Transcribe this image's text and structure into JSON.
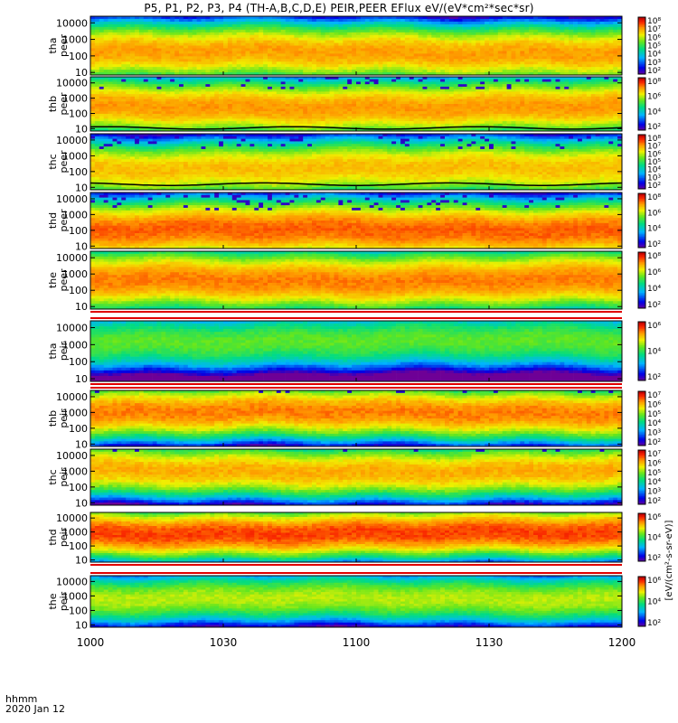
{
  "title": "P5, P1, P2, P3, P4 (TH-A,B,C,D,E) PEIR,PEER EFlux eV/(eV*cm²*sec*sr)",
  "footer": {
    "time_format": "hhmm",
    "date": "2020 Jan 12"
  },
  "colorbar_unit": "[eV/(cm²-s-sr-eV)]",
  "chart_data": {
    "type": "heatmap",
    "title": "P5, P1, P2, P3, P4 (TH-A,B,C,D,E) PEIR,PEER EFlux eV/(eV*cm²*sec*sr)",
    "x_tick_labels": [
      "1000",
      "1030",
      "1100",
      "1130",
      "1200"
    ],
    "x_ticks_minutes": [
      0,
      30,
      60,
      90,
      120
    ],
    "xlabel": "hhmm",
    "y_scale": "log",
    "y_tick_labels": [
      "10",
      "100",
      "1000",
      "10000"
    ],
    "y_range_eV": [
      7,
      25000
    ],
    "panels": [
      {
        "probe": "tha",
        "species": "peer",
        "cbar_ticks": [
          "10⁸",
          "10⁷",
          "10⁶",
          "10⁵",
          "10⁴",
          "10³",
          "10²"
        ],
        "cmin": 2,
        "cmax": 8.2,
        "line": false,
        "peak_logE": 2.2,
        "level": 7.0,
        "bgnoise": false
      },
      {
        "probe": "thb",
        "species": "peer",
        "cbar_ticks": [
          "10⁸",
          "10⁶",
          "10⁴",
          "10²"
        ],
        "cmin": 1.5,
        "cmax": 8.5,
        "line": true,
        "line_logE": 1.05,
        "peak_logE": 2.4,
        "level": 7.2,
        "bgnoise": true
      },
      {
        "probe": "thc",
        "species": "peer",
        "cbar_ticks": [
          "10⁸",
          "10⁷",
          "10⁶",
          "10⁵",
          "10⁴",
          "10³",
          "10²"
        ],
        "cmin": 2,
        "cmax": 8.5,
        "line": true,
        "line_logE": 1.2,
        "peak_logE": 2.2,
        "level": 7.0,
        "bgnoise": true
      },
      {
        "probe": "thd",
        "species": "peer",
        "cbar_ticks": [
          "10⁸",
          "10⁶",
          "10⁴",
          "10²"
        ],
        "cmin": 1.5,
        "cmax": 8.5,
        "line": false,
        "peak_logE": 2.0,
        "level": 7.6,
        "bgnoise": true
      },
      {
        "probe": "the",
        "species": "peer",
        "cbar_ticks": [
          "10⁸",
          "10⁶",
          "10⁴",
          "10²"
        ],
        "cmin": 1.5,
        "cmax": 8.5,
        "line": false,
        "peak_logE": 2.6,
        "level": 7.4,
        "bgnoise": false
      },
      {
        "probe": "tha",
        "species": "peir",
        "cbar_ticks": [
          "10⁶",
          "10⁴",
          "10²"
        ],
        "cmin": 1,
        "cmax": 7,
        "line": false,
        "peak_logE": 3.2,
        "level": 4.4,
        "bgnoise": false
      },
      {
        "probe": "thb",
        "species": "peir",
        "cbar_ticks": [
          "10⁷",
          "10⁶",
          "10⁵",
          "10⁴",
          "10³",
          "10²"
        ],
        "cmin": 1.5,
        "cmax": 7.2,
        "line": false,
        "peak_logE": 3.0,
        "level": 6.3,
        "bgnoise": true
      },
      {
        "probe": "thc",
        "species": "peir",
        "cbar_ticks": [
          "10⁷",
          "10⁶",
          "10⁵",
          "10⁴",
          "10³",
          "10²"
        ],
        "cmin": 1.5,
        "cmax": 7.2,
        "line": false,
        "peak_logE": 3.0,
        "level": 6.0,
        "bgnoise": true
      },
      {
        "probe": "thd",
        "species": "peir",
        "cbar_ticks": [
          "10⁶",
          "10⁴",
          "10²"
        ],
        "cmin": 1,
        "cmax": 7,
        "line": false,
        "peak_logE": 2.9,
        "level": 6.4,
        "bgnoise": false
      },
      {
        "probe": "the",
        "species": "peir",
        "cbar_ticks": [
          "10⁶",
          "10⁴",
          "10²"
        ],
        "cmin": 1,
        "cmax": 7,
        "line": false,
        "peak_logE": 2.8,
        "level": 4.9,
        "bgnoise": false
      }
    ]
  }
}
